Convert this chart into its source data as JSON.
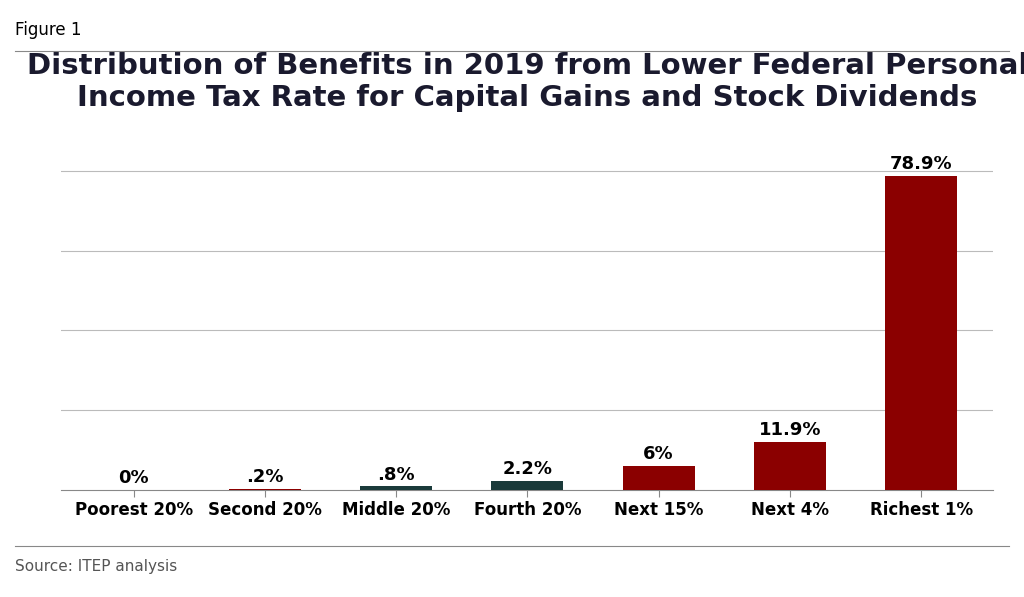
{
  "figure_label": "Figure 1",
  "title": "Distribution of Benefits in 2019 from Lower Federal Personal\nIncome Tax Rate for Capital Gains and Stock Dividends",
  "categories": [
    "Poorest 20%",
    "Second 20%",
    "Middle 20%",
    "Fourth 20%",
    "Next 15%",
    "Next 4%",
    "Richest 1%"
  ],
  "values": [
    0.0,
    0.2,
    0.8,
    2.2,
    6.0,
    11.9,
    78.9
  ],
  "labels": [
    "0%",
    ".2%",
    ".8%",
    "2.2%",
    "6%",
    "11.9%",
    "78.9%"
  ],
  "bar_colors": [
    "#8B0000",
    "#8B0000",
    "#1A3A3A",
    "#1A3A3A",
    "#8B0000",
    "#8B0000",
    "#8B0000"
  ],
  "source_text": "Source: ITEP analysis",
  "background_color": "#FFFFFF",
  "ylim": [
    0,
    90
  ],
  "yticks": [
    0,
    20,
    40,
    60,
    80
  ],
  "title_fontsize": 21,
  "title_color": "#1a1a2e",
  "label_fontsize": 13,
  "tick_fontsize": 12,
  "source_fontsize": 11,
  "figure_label_fontsize": 12
}
